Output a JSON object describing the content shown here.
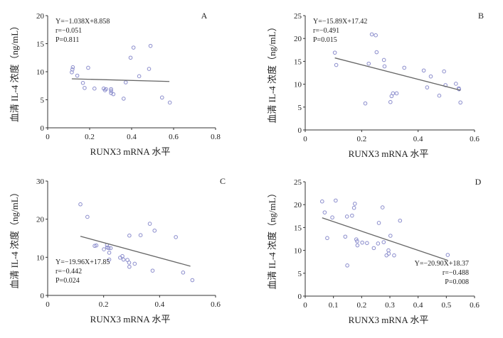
{
  "chart_data": [
    {
      "type": "scatter",
      "panel_label": "A",
      "xlabel": "RUNX3 mRNA 水平",
      "ylabel": "血清 IL-4 浓度（ng/mL）",
      "xlim": [
        0,
        0.8
      ],
      "ylim": [
        0,
        20
      ],
      "xticks": [
        "0",
        "0.2",
        "0.4",
        "0.6",
        "0.8"
      ],
      "yticks": [
        "0",
        "5",
        "10",
        "15",
        "20"
      ],
      "stats": [
        "Y=−1.038X+8.858",
        "r=−0.051",
        "P=0.811"
      ],
      "stats_placement": "top-left",
      "fit": {
        "slope": -1.038,
        "intercept": 8.858,
        "x_range": [
          0.115,
          0.58
        ]
      },
      "points": [
        [
          0.115,
          9.9
        ],
        [
          0.118,
          10.4
        ],
        [
          0.12,
          10.8
        ],
        [
          0.141,
          9.3
        ],
        [
          0.168,
          8.0
        ],
        [
          0.176,
          7.1
        ],
        [
          0.193,
          10.7
        ],
        [
          0.223,
          7.0
        ],
        [
          0.267,
          7.0
        ],
        [
          0.273,
          6.7
        ],
        [
          0.278,
          6.9
        ],
        [
          0.302,
          6.9
        ],
        [
          0.302,
          6.6
        ],
        [
          0.302,
          6.2
        ],
        [
          0.313,
          6.0
        ],
        [
          0.362,
          5.2
        ],
        [
          0.372,
          8.1
        ],
        [
          0.395,
          12.5
        ],
        [
          0.409,
          14.3
        ],
        [
          0.436,
          9.2
        ],
        [
          0.483,
          10.5
        ],
        [
          0.49,
          14.6
        ],
        [
          0.545,
          5.4
        ],
        [
          0.582,
          4.5
        ]
      ]
    },
    {
      "type": "scatter",
      "panel_label": "B",
      "xlabel": "RUNX3 mRNA 水平",
      "ylabel": "血清 IL-4 浓度（ng/mL）",
      "xlim": [
        0,
        0.6
      ],
      "ylim": [
        0,
        25
      ],
      "xticks": [
        "0",
        "0.2",
        "0.4",
        "0.6"
      ],
      "yticks": [
        "0",
        "5",
        "10",
        "15",
        "20",
        "25"
      ],
      "stats": [
        "Y=−15.89X+17.42",
        "r=−0.491",
        "P=0.015"
      ],
      "stats_placement": "top-left",
      "fit": {
        "slope": -15.89,
        "intercept": 17.42,
        "x_range": [
          0.105,
          0.55
        ]
      },
      "points": [
        [
          0.105,
          16.9
        ],
        [
          0.11,
          14.2
        ],
        [
          0.213,
          5.8
        ],
        [
          0.225,
          14.5
        ],
        [
          0.236,
          20.9
        ],
        [
          0.25,
          20.7
        ],
        [
          0.253,
          17.0
        ],
        [
          0.279,
          15.3
        ],
        [
          0.281,
          13.9
        ],
        [
          0.302,
          6.1
        ],
        [
          0.306,
          7.4
        ],
        [
          0.311,
          8.0
        ],
        [
          0.324,
          8.0
        ],
        [
          0.351,
          13.6
        ],
        [
          0.42,
          13.0
        ],
        [
          0.432,
          9.3
        ],
        [
          0.445,
          11.7
        ],
        [
          0.475,
          7.5
        ],
        [
          0.492,
          12.8
        ],
        [
          0.497,
          9.8
        ],
        [
          0.534,
          10.1
        ],
        [
          0.544,
          9.1
        ],
        [
          0.545,
          8.9
        ],
        [
          0.55,
          6.0
        ]
      ]
    },
    {
      "type": "scatter",
      "panel_label": "C",
      "xlabel": "RUNX3 mRNA 水平",
      "ylabel": "血清 IL-4 浓度（ng/mL）",
      "xlim": [
        0,
        0.6
      ],
      "ylim": [
        0,
        30
      ],
      "xticks": [
        "0",
        "0.2",
        "0.4",
        "0.6"
      ],
      "yticks": [
        "0",
        "10",
        "20",
        "30"
      ],
      "stats": [
        "Y=−19.96X+17.85",
        "r=−0.442",
        "P=0.024"
      ],
      "stats_placement": "bottom-left",
      "fit": {
        "slope": -19.96,
        "intercept": 17.85,
        "x_range": [
          0.117,
          0.51
        ]
      },
      "points": [
        [
          0.117,
          23.9
        ],
        [
          0.142,
          20.6
        ],
        [
          0.168,
          13.0
        ],
        [
          0.174,
          13.1
        ],
        [
          0.201,
          12.1
        ],
        [
          0.212,
          13.2
        ],
        [
          0.213,
          12.6
        ],
        [
          0.218,
          12.4
        ],
        [
          0.225,
          12.4
        ],
        [
          0.22,
          11.2
        ],
        [
          0.22,
          9.4
        ],
        [
          0.259,
          9.9
        ],
        [
          0.267,
          10.3
        ],
        [
          0.271,
          9.4
        ],
        [
          0.285,
          9.3
        ],
        [
          0.291,
          8.6
        ],
        [
          0.292,
          7.5
        ],
        [
          0.292,
          15.7
        ],
        [
          0.311,
          8.3
        ],
        [
          0.332,
          15.8
        ],
        [
          0.365,
          18.8
        ],
        [
          0.375,
          6.5
        ],
        [
          0.382,
          17.0
        ],
        [
          0.458,
          15.3
        ],
        [
          0.484,
          6.0
        ],
        [
          0.517,
          4.0
        ]
      ]
    },
    {
      "type": "scatter",
      "panel_label": "D",
      "xlabel": "RUNX3 mRNA 水平",
      "ylabel": "血清 IL-4 浓度（ng/mL）",
      "xlim": [
        0,
        0.6
      ],
      "ylim": [
        0,
        25
      ],
      "xticks": [
        "0",
        "0.1",
        "0.2",
        "0.3",
        "0.4",
        "0.5",
        "0.6"
      ],
      "yticks": [
        "0",
        "5",
        "10",
        "15",
        "20",
        "25"
      ],
      "stats": [
        "Y=−20.90X+18.37",
        "r=−0.488",
        "P=0.008"
      ],
      "stats_placement": "bottom-right",
      "fit": {
        "slope": -20.9,
        "intercept": 18.37,
        "x_range": [
          0.06,
          0.505
        ]
      },
      "points": [
        [
          0.06,
          20.7
        ],
        [
          0.069,
          18.3
        ],
        [
          0.078,
          12.7
        ],
        [
          0.096,
          17.2
        ],
        [
          0.108,
          20.9
        ],
        [
          0.142,
          13.0
        ],
        [
          0.148,
          17.4
        ],
        [
          0.149,
          6.7
        ],
        [
          0.166,
          17.6
        ],
        [
          0.173,
          19.3
        ],
        [
          0.176,
          20.2
        ],
        [
          0.181,
          12.4
        ],
        [
          0.184,
          12.0
        ],
        [
          0.185,
          11.1
        ],
        [
          0.202,
          11.7
        ],
        [
          0.219,
          11.6
        ],
        [
          0.243,
          10.5
        ],
        [
          0.258,
          11.5
        ],
        [
          0.261,
          16.0
        ],
        [
          0.274,
          19.4
        ],
        [
          0.278,
          11.8
        ],
        [
          0.288,
          8.9
        ],
        [
          0.295,
          10.0
        ],
        [
          0.296,
          9.3
        ],
        [
          0.302,
          13.2
        ],
        [
          0.315,
          8.9
        ],
        [
          0.336,
          16.5
        ],
        [
          0.505,
          9.0
        ]
      ]
    }
  ]
}
